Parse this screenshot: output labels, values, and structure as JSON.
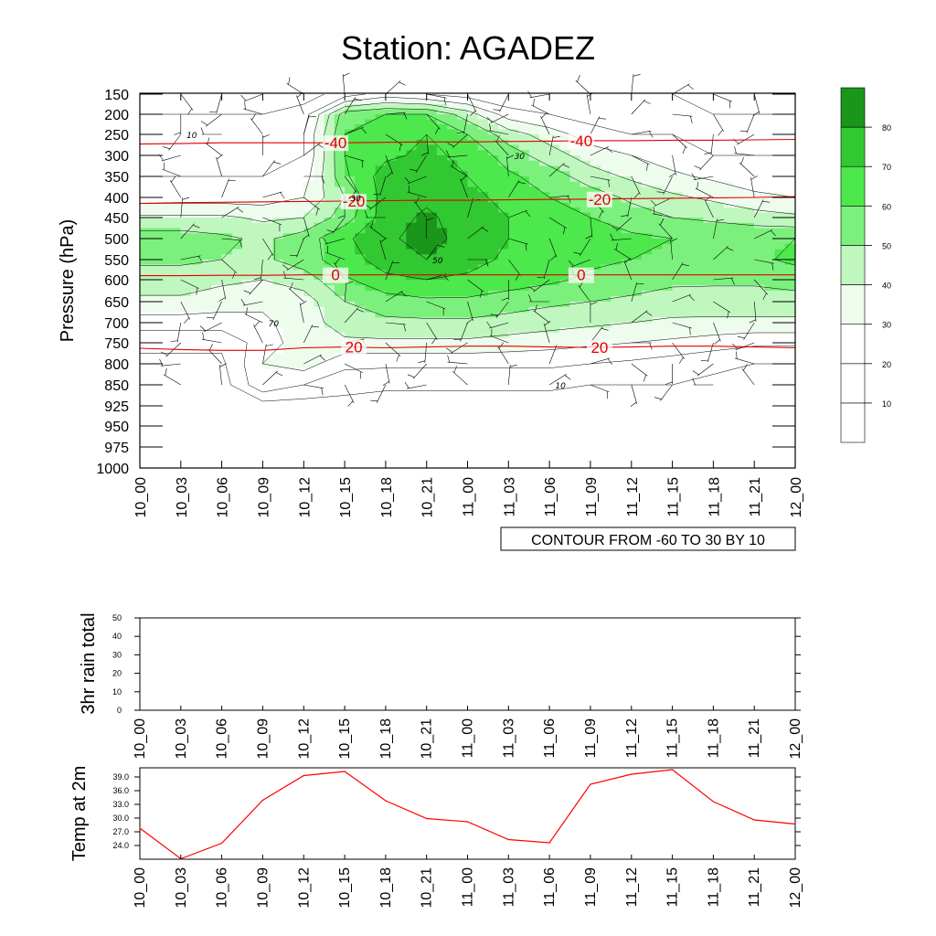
{
  "title": "Station: AGADEZ",
  "chart_data": [
    {
      "type": "heatmap",
      "ylabel": "Pressure (hPa)",
      "pressure_levels": [
        150,
        200,
        250,
        300,
        350,
        400,
        450,
        500,
        550,
        600,
        650,
        700,
        750,
        800,
        850,
        925,
        950,
        975,
        1000
      ],
      "time_labels": [
        "10_00",
        "10_03",
        "10_06",
        "10_09",
        "10_12",
        "10_15",
        "10_18",
        "10_21",
        "11_00",
        "11_03",
        "11_06",
        "11_09",
        "11_12",
        "11_15",
        "11_18",
        "11_21",
        "12_00"
      ],
      "fill_colorbar_labels": [
        "10",
        "20",
        "30",
        "40",
        "50",
        "60",
        "70",
        "80"
      ],
      "fill_colors": [
        "#ffffff",
        "#ffffff",
        "#ffffff",
        "#eefcee",
        "#bff7bf",
        "#7cf07c",
        "#4ce84c",
        "#32c832",
        "#1a961a"
      ],
      "rh_field": [
        [
          5,
          5,
          5,
          5,
          5,
          15,
          25,
          20,
          15,
          10,
          10,
          10,
          10,
          10,
          5,
          5,
          5
        ],
        [
          10,
          10,
          10,
          10,
          15,
          55,
          60,
          60,
          45,
          25,
          20,
          15,
          15,
          10,
          10,
          10,
          10
        ],
        [
          15,
          15,
          15,
          15,
          20,
          60,
          65,
          70,
          60,
          45,
          35,
          25,
          20,
          20,
          15,
          15,
          15
        ],
        [
          15,
          15,
          15,
          15,
          20,
          60,
          68,
          72,
          68,
          55,
          45,
          35,
          30,
          25,
          20,
          20,
          20
        ],
        [
          20,
          20,
          20,
          20,
          25,
          58,
          75,
          75,
          70,
          62,
          55,
          45,
          38,
          32,
          28,
          25,
          25
        ],
        [
          25,
          25,
          25,
          25,
          30,
          50,
          75,
          78,
          72,
          68,
          60,
          55,
          48,
          42,
          38,
          32,
          30
        ],
        [
          42,
          42,
          42,
          38,
          40,
          55,
          75,
          82,
          75,
          70,
          65,
          60,
          55,
          50,
          48,
          45,
          42
        ],
        [
          55,
          55,
          52,
          48,
          55,
          68,
          78,
          84,
          76,
          70,
          68,
          65,
          62,
          60,
          58,
          58,
          60
        ],
        [
          52,
          52,
          50,
          48,
          55,
          66,
          74,
          80,
          74,
          68,
          65,
          62,
          60,
          58,
          58,
          58,
          62
        ],
        [
          45,
          45,
          42,
          40,
          45,
          58,
          68,
          70,
          68,
          65,
          62,
          58,
          55,
          52,
          52,
          52,
          55
        ],
        [
          38,
          38,
          35,
          32,
          35,
          50,
          55,
          58,
          58,
          55,
          52,
          50,
          48,
          46,
          45,
          45,
          45
        ],
        [
          25,
          25,
          25,
          28,
          35,
          45,
          48,
          48,
          48,
          46,
          44,
          42,
          40,
          38,
          38,
          38,
          38
        ],
        [
          12,
          12,
          12,
          25,
          35,
          38,
          38,
          38,
          38,
          36,
          34,
          32,
          30,
          28,
          25,
          22,
          22
        ],
        [
          8,
          8,
          8,
          30,
          35,
          22,
          22,
          22,
          22,
          22,
          22,
          20,
          18,
          15,
          12,
          10,
          10
        ],
        [
          5,
          5,
          5,
          28,
          20,
          15,
          12,
          12,
          12,
          12,
          12,
          10,
          10,
          10,
          8,
          8,
          8
        ],
        [
          5,
          5,
          5,
          5,
          5,
          5,
          5,
          5,
          5,
          5,
          5,
          5,
          5,
          5,
          5,
          5,
          5
        ],
        [
          5,
          5,
          5,
          5,
          5,
          5,
          5,
          5,
          5,
          5,
          5,
          5,
          5,
          5,
          5,
          5,
          5
        ],
        [
          5,
          5,
          5,
          5,
          5,
          5,
          5,
          5,
          5,
          5,
          5,
          5,
          5,
          5,
          5,
          5,
          5
        ],
        [
          5,
          5,
          5,
          5,
          5,
          5,
          5,
          5,
          5,
          5,
          5,
          5,
          5,
          5,
          5,
          5,
          5
        ]
      ],
      "temperature_contours": [
        {
          "label": "-40",
          "pressures": [
            273,
            272,
            270,
            270,
            270,
            270,
            269,
            268,
            268,
            267,
            266,
            265,
            265,
            264,
            264,
            263,
            262
          ]
        },
        {
          "label": "-20",
          "pressures": [
            415,
            413,
            412,
            411,
            410,
            409,
            408,
            407,
            407,
            406,
            405,
            404,
            403,
            402,
            401,
            400,
            398
          ]
        },
        {
          "label": "0",
          "pressures": [
            590,
            590,
            589,
            589,
            588,
            588,
            588,
            588,
            588,
            588,
            588,
            588,
            588,
            588,
            588,
            588,
            588
          ]
        },
        {
          "label": "20",
          "pressures": [
            763,
            766,
            768,
            768,
            762,
            760,
            762,
            760,
            758,
            758,
            760,
            761,
            760,
            758,
            758,
            760,
            762
          ]
        }
      ],
      "contour_label_values": [
        "10",
        "30",
        "50",
        "70"
      ],
      "info_label": "CONTOUR FROM -60 TO 30 BY 10"
    },
    {
      "type": "bar",
      "ylabel": "3hr rain total",
      "ylim": [
        0,
        50
      ],
      "y_ticks": [
        "0",
        "10",
        "20",
        "30",
        "40",
        "50"
      ],
      "categories": [
        "10_00",
        "10_03",
        "10_06",
        "10_09",
        "10_12",
        "10_15",
        "10_18",
        "10_21",
        "11_00",
        "11_03",
        "11_06",
        "11_09",
        "11_12",
        "11_15",
        "11_18",
        "11_21",
        "12_00"
      ],
      "values": [
        0,
        0,
        0,
        0,
        0,
        0,
        0,
        0,
        0,
        0,
        0,
        0,
        0,
        0,
        0,
        0,
        0
      ]
    },
    {
      "type": "line",
      "ylabel": "Temp at 2m",
      "ylim": [
        21.0,
        41.0
      ],
      "y_ticks": [
        "24.0",
        "27.0",
        "30.0",
        "33.0",
        "36.0",
        "39.0"
      ],
      "categories": [
        "10_00",
        "10_03",
        "10_06",
        "10_09",
        "10_12",
        "10_15",
        "10_18",
        "10_21",
        "11_00",
        "11_03",
        "11_06",
        "11_09",
        "11_12",
        "11_15",
        "11_18",
        "11_21",
        "12_00"
      ],
      "values": [
        27.8,
        21.1,
        24.5,
        33.9,
        39.3,
        40.2,
        33.8,
        29.9,
        29.2,
        25.3,
        24.6,
        37.4,
        39.6,
        40.6,
        33.6,
        29.6,
        28.7
      ],
      "color": "#ff0000"
    }
  ]
}
